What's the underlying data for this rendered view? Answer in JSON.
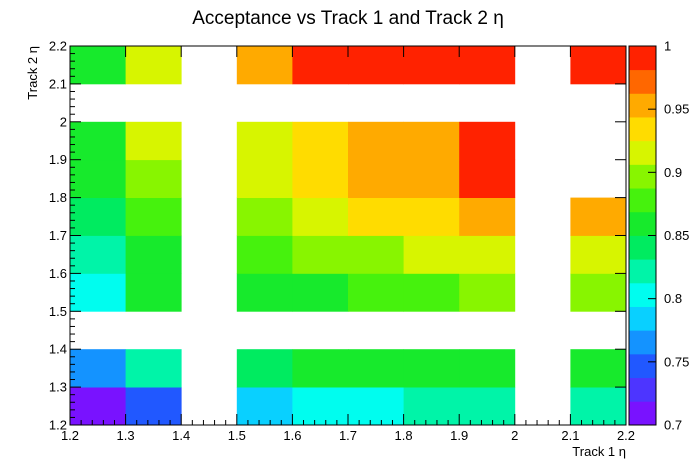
{
  "chart_data": {
    "type": "heatmap",
    "title": "Acceptance vs Track 1 and Track 2 η",
    "xlabel": "Track 1 η",
    "ylabel": "Track 2 η",
    "xlim": [
      1.2,
      2.2
    ],
    "ylim": [
      1.2,
      2.2
    ],
    "x_ticks": [
      "1.2",
      "1.3",
      "1.4",
      "1.5",
      "1.6",
      "1.7",
      "1.8",
      "1.9",
      "2",
      "2.1",
      "2.2"
    ],
    "y_ticks": [
      "1.2",
      "1.3",
      "1.4",
      "1.5",
      "1.6",
      "1.7",
      "1.8",
      "1.9",
      "2",
      "2.1",
      "2.2"
    ],
    "x_bins": [
      1.2,
      1.3,
      1.4,
      1.5,
      1.6,
      1.7,
      1.8,
      1.9,
      2.0,
      2.1,
      2.2
    ],
    "y_bins": [
      1.2,
      1.3,
      1.4,
      1.5,
      1.6,
      1.7,
      1.8,
      1.9,
      2.0,
      2.1,
      2.2
    ],
    "zlim": [
      0.7,
      1.0
    ],
    "z_ticks": [
      "0.7",
      "0.75",
      "0.8",
      "0.85",
      "0.9",
      "0.95",
      "1"
    ],
    "grid": false,
    "values_by_y_row_bottom_to_top": [
      [
        0.71,
        0.75,
        null,
        0.78,
        0.81,
        0.81,
        0.82,
        0.82,
        null,
        0.82
      ],
      [
        0.77,
        0.83,
        null,
        0.84,
        0.86,
        0.86,
        0.86,
        0.86,
        null,
        0.86
      ],
      [
        null,
        null,
        null,
        null,
        null,
        null,
        null,
        null,
        null,
        null
      ],
      [
        0.8,
        0.86,
        null,
        0.86,
        0.86,
        0.88,
        0.88,
        0.9,
        null,
        0.9
      ],
      [
        0.83,
        0.86,
        null,
        0.88,
        0.9,
        0.9,
        0.92,
        0.92,
        null,
        0.92
      ],
      [
        0.84,
        0.88,
        null,
        0.9,
        0.92,
        0.94,
        0.94,
        0.96,
        null,
        0.96
      ],
      [
        0.86,
        0.89,
        null,
        0.91,
        0.94,
        0.96,
        0.96,
        0.99,
        null,
        null
      ],
      [
        0.86,
        0.92,
        null,
        0.92,
        0.94,
        0.96,
        0.96,
        0.99,
        null,
        null
      ],
      [
        null,
        null,
        null,
        null,
        null,
        null,
        null,
        null,
        null,
        null
      ],
      [
        0.86,
        0.92,
        null,
        0.96,
        0.99,
        0.99,
        0.99,
        0.99,
        null,
        0.99
      ]
    ]
  }
}
